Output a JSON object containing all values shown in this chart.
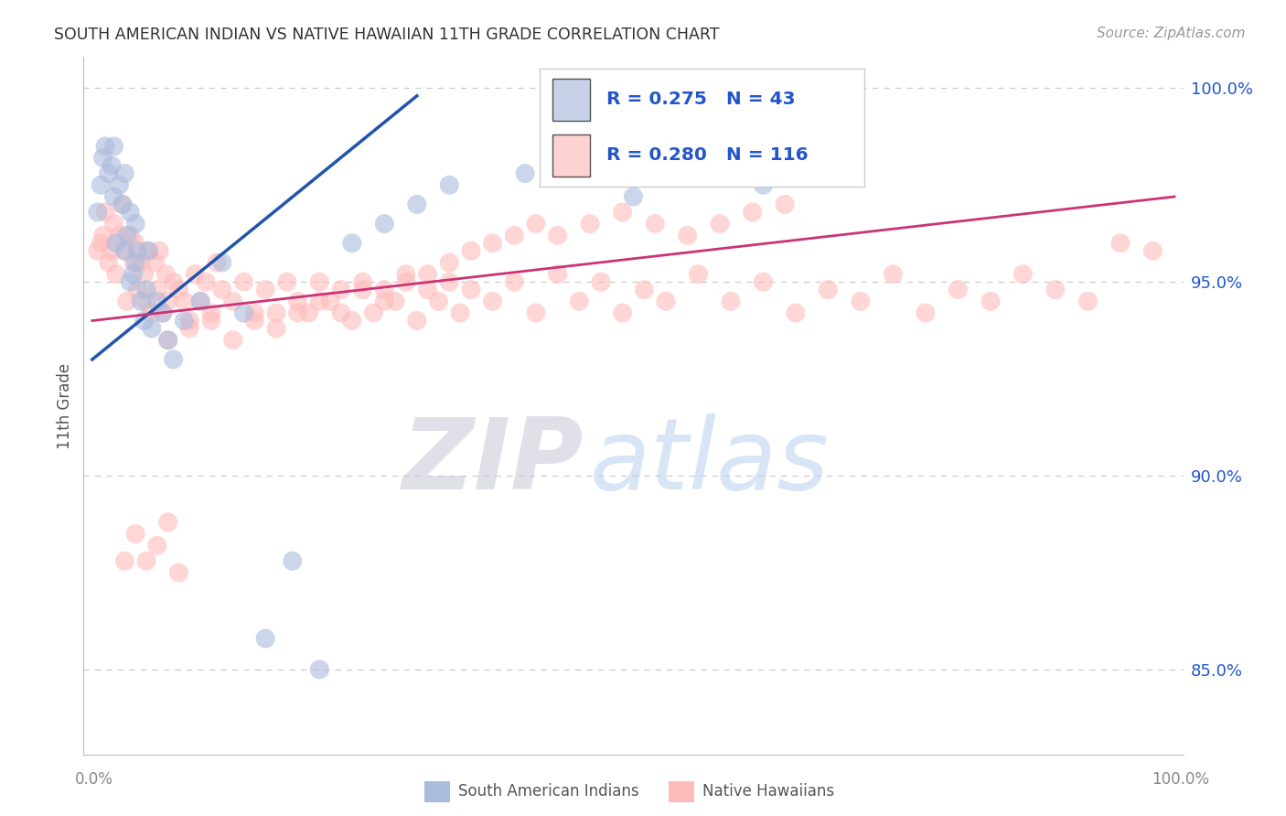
{
  "title": "SOUTH AMERICAN INDIAN VS NATIVE HAWAIIAN 11TH GRADE CORRELATION CHART",
  "source": "Source: ZipAtlas.com",
  "ylabel": "11th Grade",
  "watermark_zip": "ZIP",
  "watermark_atlas": "atlas",
  "blue_R": 0.275,
  "blue_N": 43,
  "pink_R": 0.28,
  "pink_N": 116,
  "blue_label": "South American Indians",
  "pink_label": "Native Hawaiians",
  "xlim": [
    -0.008,
    1.008
  ],
  "ylim": [
    0.828,
    1.008
  ],
  "yticks": [
    0.85,
    0.9,
    0.95,
    1.0
  ],
  "ytick_labels": [
    "85.0%",
    "90.0%",
    "95.0%",
    "100.0%"
  ],
  "bg": "#ffffff",
  "grid_color": "#cccccc",
  "blue_fc": "#aabbdd",
  "pink_fc": "#ffbbbb",
  "blue_line": "#2255aa",
  "pink_line": "#cc3377",
  "title_color": "#333333",
  "source_color": "#999999",
  "legend_color": "#2255cc",
  "blue_x": [
    0.005,
    0.008,
    0.01,
    0.012,
    0.015,
    0.018,
    0.02,
    0.02,
    0.022,
    0.025,
    0.028,
    0.03,
    0.03,
    0.032,
    0.035,
    0.035,
    0.038,
    0.04,
    0.04,
    0.042,
    0.045,
    0.048,
    0.05,
    0.052,
    0.055,
    0.06,
    0.065,
    0.07,
    0.075,
    0.085,
    0.1,
    0.12,
    0.14,
    0.16,
    0.185,
    0.21,
    0.24,
    0.27,
    0.3,
    0.33,
    0.4,
    0.5,
    0.62
  ],
  "blue_y": [
    0.968,
    0.975,
    0.982,
    0.985,
    0.978,
    0.98,
    0.972,
    0.985,
    0.96,
    0.975,
    0.97,
    0.978,
    0.958,
    0.962,
    0.95,
    0.968,
    0.952,
    0.955,
    0.965,
    0.958,
    0.945,
    0.94,
    0.948,
    0.958,
    0.938,
    0.945,
    0.942,
    0.935,
    0.93,
    0.94,
    0.945,
    0.955,
    0.942,
    0.858,
    0.878,
    0.85,
    0.96,
    0.965,
    0.97,
    0.975,
    0.978,
    0.972,
    0.975
  ],
  "pink_x": [
    0.005,
    0.008,
    0.01,
    0.012,
    0.015,
    0.018,
    0.02,
    0.022,
    0.025,
    0.028,
    0.03,
    0.032,
    0.035,
    0.038,
    0.04,
    0.042,
    0.045,
    0.048,
    0.05,
    0.052,
    0.055,
    0.058,
    0.06,
    0.062,
    0.065,
    0.068,
    0.07,
    0.075,
    0.08,
    0.085,
    0.09,
    0.095,
    0.1,
    0.105,
    0.11,
    0.115,
    0.12,
    0.13,
    0.14,
    0.15,
    0.16,
    0.17,
    0.18,
    0.19,
    0.2,
    0.21,
    0.22,
    0.23,
    0.24,
    0.25,
    0.26,
    0.27,
    0.28,
    0.29,
    0.3,
    0.31,
    0.32,
    0.33,
    0.34,
    0.35,
    0.37,
    0.39,
    0.41,
    0.43,
    0.45,
    0.47,
    0.49,
    0.51,
    0.53,
    0.56,
    0.59,
    0.62,
    0.65,
    0.68,
    0.71,
    0.74,
    0.77,
    0.8,
    0.83,
    0.86,
    0.89,
    0.92,
    0.95,
    0.98,
    0.07,
    0.09,
    0.11,
    0.13,
    0.15,
    0.17,
    0.19,
    0.21,
    0.23,
    0.25,
    0.27,
    0.29,
    0.31,
    0.33,
    0.35,
    0.37,
    0.39,
    0.41,
    0.43,
    0.46,
    0.49,
    0.52,
    0.55,
    0.58,
    0.61,
    0.64,
    0.03,
    0.04,
    0.05,
    0.06,
    0.07,
    0.08
  ],
  "pink_y": [
    0.958,
    0.96,
    0.962,
    0.968,
    0.955,
    0.958,
    0.965,
    0.952,
    0.962,
    0.97,
    0.958,
    0.945,
    0.962,
    0.955,
    0.96,
    0.948,
    0.955,
    0.952,
    0.945,
    0.958,
    0.942,
    0.955,
    0.948,
    0.958,
    0.942,
    0.952,
    0.945,
    0.95,
    0.948,
    0.945,
    0.94,
    0.952,
    0.945,
    0.95,
    0.942,
    0.955,
    0.948,
    0.945,
    0.95,
    0.942,
    0.948,
    0.942,
    0.95,
    0.945,
    0.942,
    0.95,
    0.945,
    0.948,
    0.94,
    0.95,
    0.942,
    0.948,
    0.945,
    0.952,
    0.94,
    0.948,
    0.945,
    0.95,
    0.942,
    0.948,
    0.945,
    0.95,
    0.942,
    0.952,
    0.945,
    0.95,
    0.942,
    0.948,
    0.945,
    0.952,
    0.945,
    0.95,
    0.942,
    0.948,
    0.945,
    0.952,
    0.942,
    0.948,
    0.945,
    0.952,
    0.948,
    0.945,
    0.96,
    0.958,
    0.935,
    0.938,
    0.94,
    0.935,
    0.94,
    0.938,
    0.942,
    0.945,
    0.942,
    0.948,
    0.945,
    0.95,
    0.952,
    0.955,
    0.958,
    0.96,
    0.962,
    0.965,
    0.962,
    0.965,
    0.968,
    0.965,
    0.962,
    0.965,
    0.968,
    0.97,
    0.878,
    0.885,
    0.878,
    0.882,
    0.888,
    0.875
  ],
  "blue_trend_x": [
    0.0,
    0.3
  ],
  "blue_trend_y": [
    0.93,
    0.998
  ],
  "pink_trend_x": [
    0.0,
    1.0
  ],
  "pink_trend_y": [
    0.94,
    0.972
  ]
}
